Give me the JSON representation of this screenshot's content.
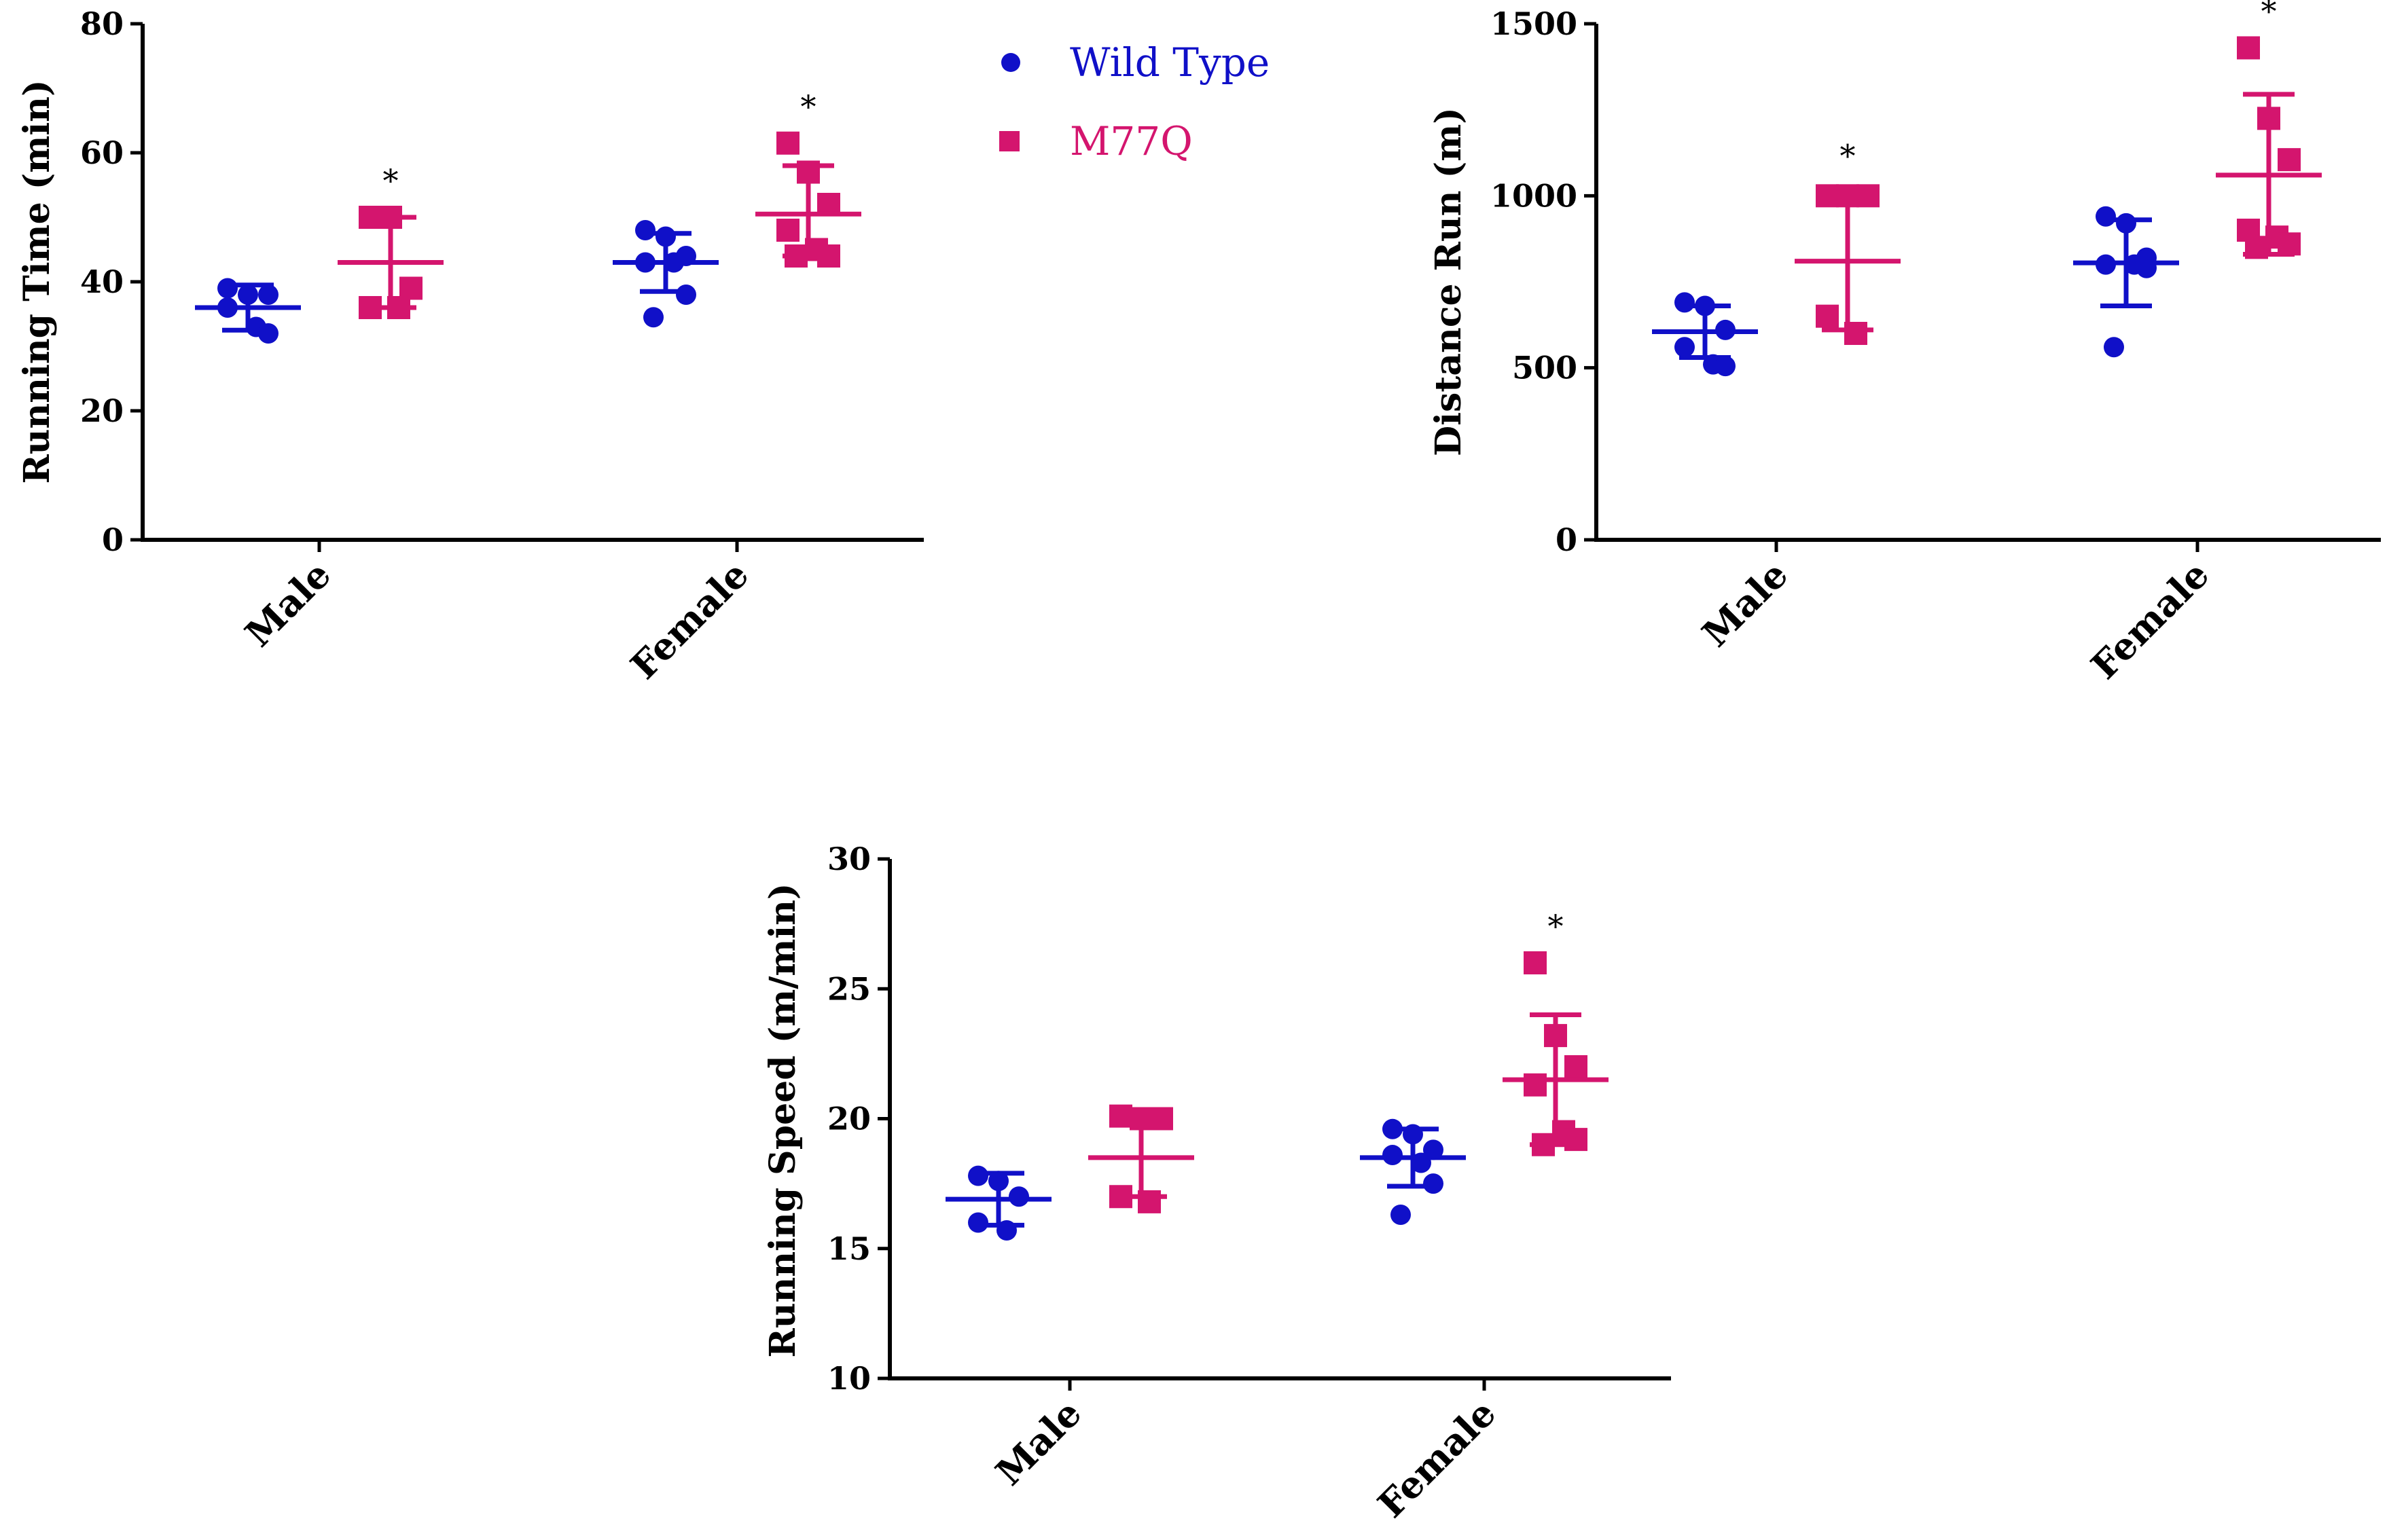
{
  "colors": {
    "wild_type": "#1010c8",
    "m77q": "#d4156e",
    "axis": "#000000"
  },
  "legend": [
    {
      "label": "Wild Type",
      "marker": "circle",
      "color": "#1010c8"
    },
    {
      "label": "M77Q",
      "marker": "square",
      "color": "#d4156e"
    }
  ],
  "chart_data": [
    {
      "type": "scatter",
      "ylabel": "Running Time (min)",
      "ylim": [
        0,
        80
      ],
      "yticks": [
        0,
        20,
        40,
        60,
        80
      ],
      "categories": [
        "Male",
        "Female"
      ],
      "series": [
        {
          "name": "Wild Type",
          "groups": [
            {
              "category": "Male",
              "points": [
                39,
                38,
                38,
                36,
                33,
                32
              ],
              "mean": 36,
              "sd_low": 32.5,
              "sd_high": 39.5
            },
            {
              "category": "Female",
              "points": [
                48,
                47,
                44,
                43,
                43,
                38,
                34.5
              ],
              "mean": 43,
              "sd_low": 38.5,
              "sd_high": 47.5
            }
          ],
          "significance": [
            "",
            ""
          ]
        },
        {
          "name": "M77Q",
          "groups": [
            {
              "category": "Male",
              "points": [
                50,
                50,
                39,
                36,
                36
              ],
              "mean": 43,
              "sd_low": 36,
              "sd_high": 50
            },
            {
              "category": "Female",
              "points": [
                61.5,
                57,
                52,
                48,
                45,
                44,
                44
              ],
              "mean": 50.5,
              "sd_low": 44,
              "sd_high": 58
            }
          ],
          "significance": [
            "*",
            "*"
          ]
        }
      ]
    },
    {
      "type": "scatter",
      "ylabel": "Distance Run (m)",
      "ylim": [
        0,
        1500
      ],
      "yticks": [
        0,
        500,
        1000,
        1500
      ],
      "categories": [
        "Male",
        "Female"
      ],
      "series": [
        {
          "name": "Wild Type",
          "groups": [
            {
              "category": "Male",
              "points": [
                690,
                680,
                610,
                560,
                510,
                505
              ],
              "mean": 605,
              "sd_low": 530,
              "sd_high": 680
            },
            {
              "category": "Female",
              "points": [
                940,
                920,
                820,
                800,
                800,
                790,
                560
              ],
              "mean": 805,
              "sd_low": 680,
              "sd_high": 930
            }
          ],
          "significance": [
            "",
            ""
          ]
        },
        {
          "name": "M77Q",
          "groups": [
            {
              "category": "Male",
              "points": [
                1000,
                1000,
                1000,
                650,
                600
              ],
              "mean": 810,
              "sd_low": 610,
              "sd_high": 1010
            },
            {
              "category": "Female",
              "points": [
                1430,
                1225,
                1105,
                900,
                880,
                860,
                850
              ],
              "mean": 1060,
              "sd_low": 830,
              "sd_high": 1295
            }
          ],
          "significance": [
            "*",
            "*"
          ]
        }
      ]
    },
    {
      "type": "scatter",
      "ylabel": "Running Speed (m/min)",
      "ylim": [
        10,
        30
      ],
      "yticks": [
        10,
        15,
        20,
        25,
        30
      ],
      "categories": [
        "Male",
        "Female"
      ],
      "series": [
        {
          "name": "Wild Type",
          "groups": [
            {
              "category": "Male",
              "points": [
                17.8,
                17.6,
                17.0,
                16.0,
                15.7
              ],
              "mean": 16.9,
              "sd_low": 15.9,
              "sd_high": 17.9
            },
            {
              "category": "Female",
              "points": [
                19.6,
                19.4,
                18.8,
                18.6,
                18.3,
                17.5,
                16.3
              ],
              "mean": 18.5,
              "sd_low": 17.4,
              "sd_high": 19.6
            }
          ],
          "significance": [
            "",
            ""
          ]
        },
        {
          "name": "M77Q",
          "groups": [
            {
              "category": "Male",
              "points": [
                20.1,
                20.0,
                20.0,
                17.0,
                16.8
              ],
              "mean": 18.5,
              "sd_low": 17.0,
              "sd_high": 20.0
            },
            {
              "category": "Female",
              "points": [
                26.0,
                23.2,
                22.0,
                21.3,
                19.5,
                19.2,
                19.0
              ],
              "mean": 21.5,
              "sd_low": 19.0,
              "sd_high": 24.0
            }
          ],
          "significance": [
            "",
            "*"
          ]
        }
      ]
    }
  ]
}
